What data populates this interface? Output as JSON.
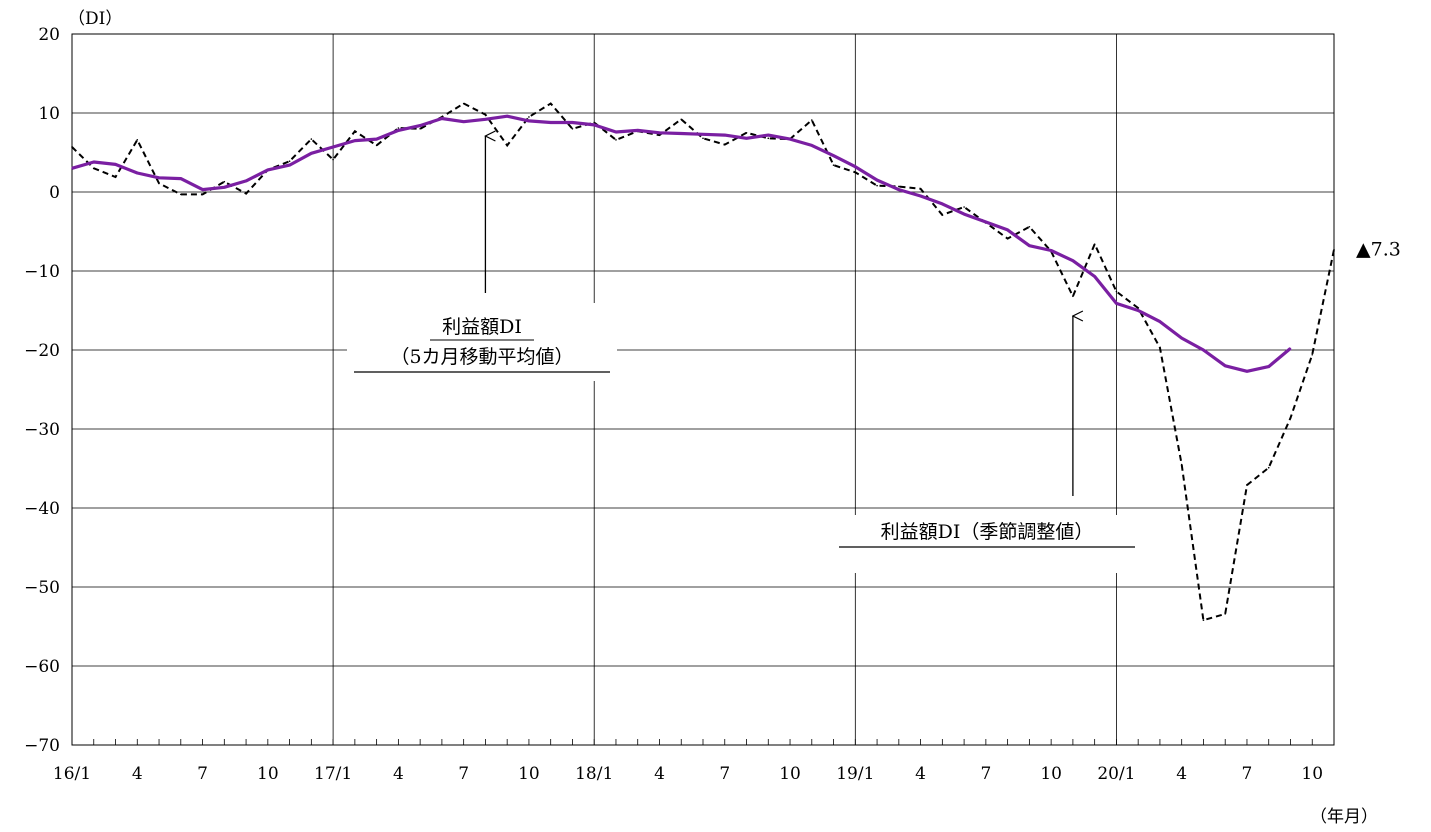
{
  "chart_data": {
    "type": "line",
    "y_unit_label": "（DI）",
    "x_unit_label": "（年月）",
    "ylim": [
      -70,
      20
    ],
    "yticks": [
      20,
      10,
      0,
      -10,
      -20,
      -30,
      -40,
      -50,
      -60,
      -70
    ],
    "ytick_labels": [
      "20",
      "10",
      "0",
      "−10",
      "−20",
      "−30",
      "−40",
      "−50",
      "−60",
      "−70"
    ],
    "x_start": "2016-01",
    "x_end": "2020-10",
    "xtick_labels": [
      "16/1",
      "4",
      "7",
      "10",
      "17/1",
      "4",
      "7",
      "10",
      "18/1",
      "4",
      "7",
      "10",
      "19/1",
      "4",
      "7",
      "10",
      "20/1",
      "4",
      "7",
      "10"
    ],
    "grid": true,
    "series": [
      {
        "name": "利益額DI（季節調整値）",
        "style": "dashed",
        "color": "#000000",
        "values": [
          5.7,
          3.0,
          1.9,
          6.6,
          1.1,
          -0.3,
          -0.3,
          1.3,
          -0.2,
          2.8,
          3.9,
          6.7,
          4.1,
          7.7,
          5.9,
          8.1,
          8.0,
          9.5,
          11.2,
          9.8,
          5.9,
          9.5,
          11.2,
          8.0,
          8.8,
          6.6,
          7.7,
          7.2,
          9.2,
          6.8,
          6.0,
          7.5,
          6.8,
          6.7,
          9.1,
          3.4,
          2.5,
          0.8,
          0.7,
          0.4,
          -2.9,
          -1.9,
          -3.9,
          -5.9,
          -4.4,
          -7.5,
          -13.2,
          -6.6,
          -12.6,
          -14.7,
          -19.7,
          -34.5,
          -54.2,
          -53.4,
          -37.1,
          -34.9,
          -28.6,
          -20.6,
          -7.3
        ],
        "last_value_label": "▲7.3"
      },
      {
        "name": "利益額DI（5カ月移動平均値）",
        "style": "solid",
        "color": "#7a1fa2",
        "values": [
          3.0,
          3.8,
          3.5,
          2.4,
          1.8,
          1.7,
          0.3,
          0.6,
          1.4,
          2.8,
          3.4,
          4.9,
          5.7,
          6.5,
          6.7,
          7.8,
          8.4,
          9.3,
          8.9,
          9.2,
          9.6,
          9.0,
          8.8,
          8.8,
          8.5,
          7.6,
          7.8,
          7.5,
          7.4,
          7.3,
          7.2,
          6.8,
          7.2,
          6.7,
          5.9,
          4.6,
          3.2,
          1.5,
          0.3,
          -0.5,
          -1.5,
          -2.8,
          -3.8,
          -4.8,
          -6.8,
          -7.4,
          -8.7,
          -10.7,
          -14.1,
          -15.0,
          -16.4,
          -18.5,
          -20.0,
          -22.0,
          -22.7,
          -22.1,
          -19.8
        ]
      }
    ],
    "annotations": [
      {
        "lines": [
          "利益額DI",
          "（5カ月移動平均値）"
        ],
        "points_to_month": 19,
        "points_to_value": 8.5
      },
      {
        "lines": [
          "利益額DI（季節調整値）"
        ],
        "points_to_month": 46,
        "points_to_value": -15.5
      }
    ]
  }
}
